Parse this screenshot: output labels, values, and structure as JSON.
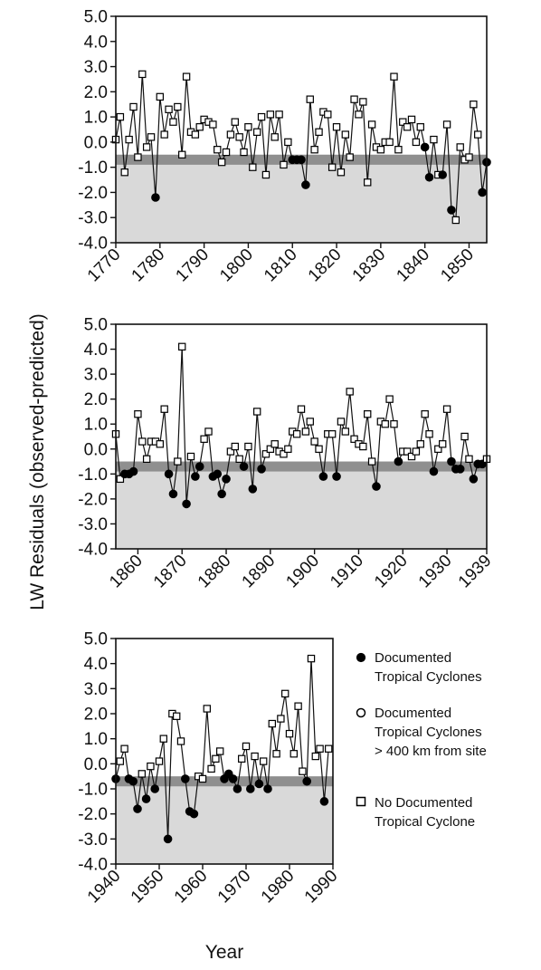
{
  "ylabel": "LW Residuals (observed-predicted)",
  "xlabel": "Year",
  "legend": [
    {
      "key": "documented",
      "symbol": "filled-circle",
      "lines": [
        "Documented",
        "Tropical Cyclones"
      ]
    },
    {
      "key": "far",
      "symbol": "open-circle",
      "lines": [
        "Documented",
        "Tropical Cyclones",
        "> 400 km from site"
      ]
    },
    {
      "key": "none",
      "symbol": "open-square",
      "lines": [
        "No Documented",
        "Tropical Cyclone"
      ]
    }
  ],
  "colors": {
    "shade": "#d9d9d9",
    "band": "#8f8f8f",
    "line": "#111111",
    "filled": "#000000",
    "open": "#ffffff"
  },
  "chart_data": [
    {
      "type": "line",
      "ylim": [
        -4.0,
        5.0
      ],
      "xlim": [
        1770,
        1854
      ],
      "yticks": [
        5.0,
        4.0,
        3.0,
        2.0,
        1.0,
        0.0,
        -1.0,
        -2.0,
        -3.0,
        -4.0
      ],
      "ytick_labels": [
        "5.0",
        "4.0",
        "3.0",
        "2.0",
        "1.0",
        "0.0",
        "-1.0",
        "-2.0",
        "-3.0",
        "-4.0"
      ],
      "xticks": [
        1770,
        1780,
        1790,
        1800,
        1810,
        1820,
        1830,
        1840,
        1850
      ],
      "xtick_labels": [
        "1770",
        "1780",
        "1790",
        "1800",
        "1810",
        "1820",
        "1830",
        "1840",
        "1850"
      ],
      "shaded_below": -0.5,
      "band": [
        -0.9,
        -0.5
      ],
      "x": [
        1770,
        1771,
        1772,
        1773,
        1774,
        1775,
        1776,
        1777,
        1778,
        1779,
        1780,
        1781,
        1782,
        1783,
        1784,
        1785,
        1786,
        1787,
        1788,
        1789,
        1790,
        1791,
        1792,
        1793,
        1794,
        1795,
        1796,
        1797,
        1798,
        1799,
        1800,
        1801,
        1802,
        1803,
        1804,
        1805,
        1806,
        1807,
        1808,
        1809,
        1810,
        1811,
        1812,
        1813,
        1814,
        1815,
        1816,
        1817,
        1818,
        1819,
        1820,
        1821,
        1822,
        1823,
        1824,
        1825,
        1826,
        1827,
        1828,
        1829,
        1830,
        1831,
        1832,
        1833,
        1834,
        1835,
        1836,
        1837,
        1838,
        1839,
        1840,
        1841,
        1842,
        1843,
        1844,
        1845,
        1846,
        1847,
        1848,
        1849,
        1850,
        1851,
        1852,
        1853,
        1854
      ],
      "y": [
        0.1,
        1.0,
        -1.2,
        0.1,
        1.4,
        -0.6,
        2.7,
        -0.2,
        0.2,
        -2.2,
        1.8,
        0.3,
        1.3,
        0.8,
        1.4,
        -0.5,
        2.6,
        0.4,
        0.3,
        0.6,
        0.9,
        0.8,
        0.7,
        -0.3,
        -0.8,
        -0.4,
        0.3,
        0.8,
        0.2,
        -0.4,
        0.6,
        -1.0,
        0.4,
        1.0,
        -1.3,
        1.1,
        0.2,
        1.1,
        -0.9,
        0.0,
        -0.7,
        -0.7,
        -0.7,
        -1.7,
        1.7,
        -0.3,
        0.4,
        1.2,
        1.1,
        -1.0,
        0.6,
        -1.2,
        0.3,
        -0.6,
        1.7,
        1.1,
        1.6,
        -1.6,
        0.7,
        -0.2,
        -0.3,
        0.0,
        0.0,
        2.6,
        -0.3,
        0.8,
        0.6,
        0.9,
        0.0,
        0.6,
        -0.2,
        -1.4,
        0.1,
        -1.3,
        -1.3,
        0.7,
        -2.7,
        -3.1,
        -0.2,
        -0.7,
        -0.6,
        1.5,
        0.3,
        -2.0,
        -0.8
      ],
      "markers": [
        "s",
        "s",
        "s",
        "s",
        "s",
        "s",
        "s",
        "s",
        "s",
        "f",
        "s",
        "s",
        "s",
        "s",
        "s",
        "s",
        "s",
        "s",
        "s",
        "s",
        "s",
        "s",
        "s",
        "s",
        "s",
        "s",
        "s",
        "s",
        "s",
        "s",
        "s",
        "s",
        "s",
        "s",
        "s",
        "s",
        "s",
        "s",
        "s",
        "s",
        "f",
        "f",
        "f",
        "f",
        "s",
        "s",
        "s",
        "s",
        "s",
        "s",
        "s",
        "s",
        "s",
        "s",
        "s",
        "s",
        "s",
        "s",
        "s",
        "s",
        "s",
        "s",
        "s",
        "s",
        "s",
        "s",
        "s",
        "s",
        "s",
        "s",
        "f",
        "f",
        "s",
        "s",
        "f",
        "s",
        "f",
        "s",
        "s",
        "s",
        "s",
        "s",
        "s",
        "f",
        "f"
      ]
    },
    {
      "type": "line",
      "ylim": [
        -4.0,
        5.0
      ],
      "xlim": [
        1855,
        1939
      ],
      "yticks": [
        5.0,
        4.0,
        3.0,
        2.0,
        1.0,
        0.0,
        -1.0,
        -2.0,
        -3.0,
        -4.0
      ],
      "ytick_labels": [
        "5.0",
        "4.0",
        "3.0",
        "2.0",
        "1.0",
        "0.0",
        "-1.0",
        "-2.0",
        "-3.0",
        "-4.0"
      ],
      "xticks": [
        1860,
        1870,
        1880,
        1890,
        1900,
        1910,
        1920,
        1930,
        1939
      ],
      "xtick_labels": [
        "1860",
        "1870",
        "1880",
        "1890",
        "1900",
        "1910",
        "1920",
        "1930",
        "1939"
      ],
      "shaded_below": -0.5,
      "band": [
        -0.9,
        -0.5
      ],
      "x": [
        1855,
        1856,
        1857,
        1858,
        1859,
        1860,
        1861,
        1862,
        1863,
        1864,
        1865,
        1866,
        1867,
        1868,
        1869,
        1870,
        1871,
        1872,
        1873,
        1874,
        1875,
        1876,
        1877,
        1878,
        1879,
        1880,
        1881,
        1882,
        1883,
        1884,
        1885,
        1886,
        1887,
        1888,
        1889,
        1890,
        1891,
        1892,
        1893,
        1894,
        1895,
        1896,
        1897,
        1898,
        1899,
        1900,
        1901,
        1902,
        1903,
        1904,
        1905,
        1906,
        1907,
        1908,
        1909,
        1910,
        1911,
        1912,
        1913,
        1914,
        1915,
        1916,
        1917,
        1918,
        1919,
        1920,
        1921,
        1922,
        1923,
        1924,
        1925,
        1926,
        1927,
        1928,
        1929,
        1930,
        1931,
        1932,
        1933,
        1934,
        1935,
        1936,
        1937,
        1938,
        1939
      ],
      "y": [
        0.6,
        -1.2,
        -1.0,
        -1.0,
        -0.9,
        1.4,
        0.3,
        -0.4,
        0.3,
        0.3,
        0.2,
        1.6,
        -1.0,
        -1.8,
        -0.5,
        4.1,
        -2.2,
        -0.3,
        -1.1,
        -0.7,
        0.4,
        0.7,
        -1.1,
        -1.0,
        -1.8,
        -1.2,
        -0.1,
        0.1,
        -0.4,
        -0.7,
        0.1,
        -1.6,
        1.5,
        -0.8,
        -0.2,
        0.0,
        0.2,
        -0.1,
        -0.2,
        0.0,
        0.7,
        0.6,
        1.6,
        0.7,
        1.1,
        0.3,
        0.0,
        -1.1,
        0.6,
        0.6,
        -1.1,
        1.1,
        0.7,
        2.3,
        0.4,
        0.2,
        0.1,
        1.4,
        -0.5,
        -1.5,
        1.1,
        1.0,
        2.0,
        1.0,
        -0.5,
        -0.1,
        -0.1,
        -0.3,
        -0.1,
        0.2,
        1.4,
        0.6,
        -0.9,
        0.0,
        0.2,
        1.6,
        -0.5,
        -0.8,
        -0.8,
        0.5,
        -0.4,
        -1.2,
        -0.6,
        -0.6,
        -0.4
      ],
      "markers": [
        "s",
        "s",
        "f",
        "f",
        "f",
        "s",
        "s",
        "s",
        "s",
        "s",
        "s",
        "s",
        "f",
        "f",
        "s",
        "s",
        "f",
        "s",
        "f",
        "f",
        "s",
        "s",
        "f",
        "f",
        "f",
        "f",
        "s",
        "s",
        "s",
        "f",
        "s",
        "f",
        "s",
        "f",
        "s",
        "s",
        "s",
        "s",
        "s",
        "s",
        "s",
        "s",
        "s",
        "s",
        "s",
        "s",
        "s",
        "f",
        "s",
        "s",
        "f",
        "s",
        "s",
        "s",
        "s",
        "s",
        "s",
        "s",
        "s",
        "f",
        "s",
        "s",
        "s",
        "s",
        "f",
        "s",
        "s",
        "s",
        "s",
        "s",
        "s",
        "s",
        "f",
        "s",
        "s",
        "s",
        "f",
        "f",
        "f",
        "s",
        "s",
        "f",
        "f",
        "f",
        "s"
      ]
    },
    {
      "type": "line",
      "ylim": [
        -4.0,
        5.0
      ],
      "xlim": [
        1940,
        1990
      ],
      "yticks": [
        5.0,
        4.0,
        3.0,
        2.0,
        1.0,
        0.0,
        -1.0,
        -2.0,
        -3.0,
        -4.0
      ],
      "ytick_labels": [
        "5.0",
        "4.0",
        "3.0",
        "2.0",
        "1.0",
        "0.0",
        "-1.0",
        "-2.0",
        "-3.0",
        "-4.0"
      ],
      "xticks": [
        1940,
        1950,
        1960,
        1970,
        1980,
        1990
      ],
      "xtick_labels": [
        "1940",
        "1950",
        "1960",
        "1970",
        "1980",
        "1990"
      ],
      "shaded_below": -0.5,
      "band": [
        -0.9,
        -0.5
      ],
      "x": [
        1940,
        1941,
        1942,
        1943,
        1944,
        1945,
        1946,
        1947,
        1948,
        1949,
        1950,
        1951,
        1952,
        1953,
        1954,
        1955,
        1956,
        1957,
        1958,
        1959,
        1960,
        1961,
        1962,
        1963,
        1964,
        1965,
        1966,
        1967,
        1968,
        1969,
        1970,
        1971,
        1972,
        1973,
        1974,
        1975,
        1976,
        1977,
        1978,
        1979,
        1980,
        1981,
        1982,
        1983,
        1984,
        1985,
        1986,
        1987,
        1988,
        1989
      ],
      "y": [
        -0.6,
        0.1,
        0.6,
        -0.6,
        -0.7,
        -1.8,
        -0.4,
        -1.4,
        -0.1,
        -1.0,
        0.1,
        1.0,
        -3.0,
        2.0,
        1.9,
        0.9,
        -0.6,
        -1.9,
        -2.0,
        -0.5,
        -0.6,
        2.2,
        -0.2,
        0.2,
        0.5,
        -0.6,
        -0.4,
        -0.6,
        -1.0,
        0.2,
        0.7,
        -1.0,
        0.3,
        -0.8,
        0.1,
        -1.0,
        1.6,
        0.4,
        1.8,
        2.8,
        1.2,
        0.4,
        2.3,
        -0.3,
        -0.7,
        4.2,
        0.3,
        0.6,
        -1.5,
        0.6
      ],
      "markers": [
        "f",
        "s",
        "s",
        "f",
        "f",
        "f",
        "s",
        "f",
        "s",
        "f",
        "s",
        "s",
        "f",
        "s",
        "s",
        "s",
        "f",
        "f",
        "f",
        "s",
        "s",
        "s",
        "s",
        "s",
        "s",
        "f",
        "f",
        "f",
        "f",
        "s",
        "s",
        "f",
        "s",
        "f",
        "s",
        "f",
        "s",
        "s",
        "s",
        "s",
        "s",
        "s",
        "s",
        "s",
        "f",
        "s",
        "s",
        "s",
        "f",
        "s"
      ]
    }
  ]
}
